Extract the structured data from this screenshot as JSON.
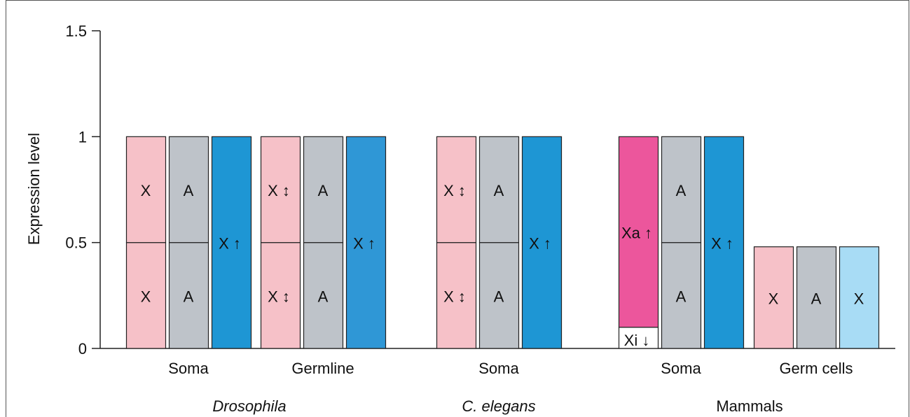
{
  "chart_data": {
    "type": "bar",
    "ylabel": "Expression level",
    "ylim": [
      0,
      1.5
    ],
    "yticks": [
      "0",
      "0.5",
      "1",
      "1.5"
    ],
    "ytick_values": [
      0,
      0.5,
      1,
      1.5
    ],
    "colors": {
      "x_pink": "#f6c1c8",
      "autosome_grey": "#bec3c9",
      "x_blue": "#1e96d4",
      "x_blue_germ": "#2f97d6",
      "xa_magenta": "#ec569c",
      "xi_white": "#ffffff",
      "x_lightblue": "#a8dcf5"
    },
    "bars": [
      {
        "group": 0,
        "color": "x_pink",
        "segments": [
          {
            "value": 0.5,
            "label": "X",
            "arrow": ""
          },
          {
            "value": 0.5,
            "label": "X",
            "arrow": ""
          }
        ]
      },
      {
        "group": 0,
        "color": "autosome_grey",
        "segments": [
          {
            "value": 0.5,
            "label": "A",
            "arrow": ""
          },
          {
            "value": 0.5,
            "label": "A",
            "arrow": ""
          }
        ]
      },
      {
        "group": 0,
        "color": "x_blue",
        "segments": [
          {
            "value": 1.0,
            "label": "X",
            "arrow": "up"
          }
        ]
      },
      {
        "group": 1,
        "color": "x_pink",
        "segments": [
          {
            "value": 0.5,
            "label": "X",
            "arrow": "updown"
          },
          {
            "value": 0.5,
            "label": "X",
            "arrow": "updown"
          }
        ]
      },
      {
        "group": 1,
        "color": "autosome_grey",
        "segments": [
          {
            "value": 0.5,
            "label": "A",
            "arrow": ""
          },
          {
            "value": 0.5,
            "label": "A",
            "arrow": ""
          }
        ]
      },
      {
        "group": 1,
        "color": "x_blue_germ",
        "segments": [
          {
            "value": 1.0,
            "label": "X",
            "arrow": "up"
          }
        ]
      },
      {
        "group": 2,
        "color": "x_pink",
        "segments": [
          {
            "value": 0.5,
            "label": "X",
            "arrow": "updown"
          },
          {
            "value": 0.5,
            "label": "X",
            "arrow": "updown"
          }
        ]
      },
      {
        "group": 2,
        "color": "autosome_grey",
        "segments": [
          {
            "value": 0.5,
            "label": "A",
            "arrow": ""
          },
          {
            "value": 0.5,
            "label": "A",
            "arrow": ""
          }
        ]
      },
      {
        "group": 2,
        "color": "x_blue",
        "segments": [
          {
            "value": 1.0,
            "label": "X",
            "arrow": "up"
          }
        ]
      },
      {
        "group": 3,
        "color": "xa_magenta",
        "segments": [
          {
            "value": 0.1,
            "label": "Xi",
            "arrow": "down",
            "color": "xi_white"
          },
          {
            "value": 0.9,
            "label": "Xa",
            "arrow": "up"
          }
        ]
      },
      {
        "group": 3,
        "color": "autosome_grey",
        "segments": [
          {
            "value": 0.5,
            "label": "A",
            "arrow": ""
          },
          {
            "value": 0.5,
            "label": "A",
            "arrow": ""
          }
        ]
      },
      {
        "group": 3,
        "color": "x_blue",
        "segments": [
          {
            "value": 1.0,
            "label": "X",
            "arrow": "up"
          }
        ]
      },
      {
        "group": 4,
        "color": "x_pink",
        "segments": [
          {
            "value": 0.48,
            "label": "X",
            "arrow": ""
          }
        ]
      },
      {
        "group": 4,
        "color": "autosome_grey",
        "segments": [
          {
            "value": 0.48,
            "label": "A",
            "arrow": ""
          }
        ]
      },
      {
        "group": 4,
        "color": "x_lightblue",
        "segments": [
          {
            "value": 0.48,
            "label": "X",
            "arrow": ""
          }
        ]
      }
    ],
    "group_labels": [
      "Soma",
      "Germline",
      "Soma",
      "Soma",
      "Germ cells"
    ],
    "species_labels": [
      {
        "text": "Drosophila",
        "italic": true
      },
      {
        "text": "C. elegans",
        "italic": true
      },
      {
        "text": "Mammals",
        "italic": false
      }
    ]
  }
}
